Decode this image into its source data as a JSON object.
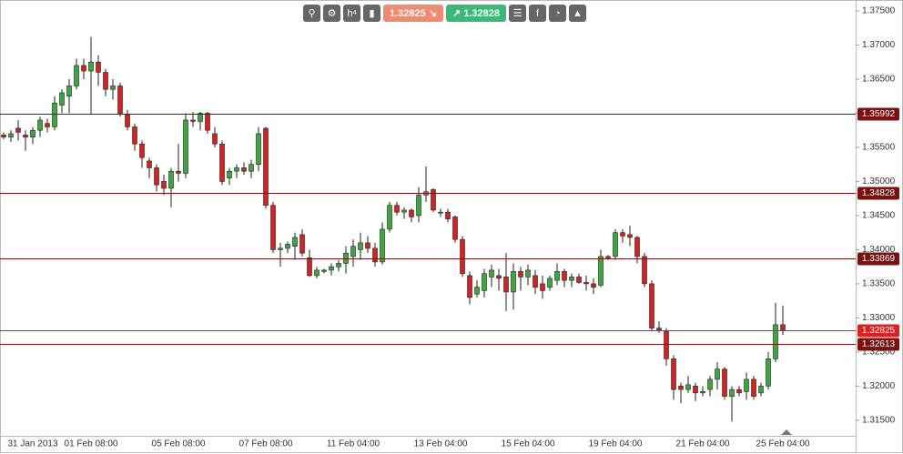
{
  "toolbar": {
    "timeframe": [
      "h",
      "4"
    ],
    "bid": "1.32825",
    "ask": "1.32828"
  },
  "chart_data": {
    "type": "candlestick",
    "categories": [
      null,
      null,
      null,
      null,
      "31 Jan 2013",
      null,
      null,
      null,
      null,
      null,
      null,
      null,
      "01 Feb 08:00",
      null,
      null,
      null,
      null,
      null,
      null,
      null,
      null,
      null,
      null,
      null,
      "05 Feb 08:00",
      null,
      null,
      null,
      null,
      null,
      null,
      null,
      null,
      null,
      null,
      null,
      "07 Feb 08:00",
      null,
      null,
      null,
      null,
      null,
      null,
      null,
      null,
      null,
      null,
      null,
      "11 Feb 04:00",
      null,
      null,
      null,
      null,
      null,
      null,
      null,
      null,
      null,
      null,
      null,
      "13 Feb 04:00",
      null,
      null,
      null,
      null,
      null,
      null,
      null,
      null,
      null,
      null,
      null,
      "15 Feb 04:00",
      null,
      null,
      null,
      null,
      null,
      null,
      null,
      null,
      null,
      null,
      null,
      "19 Feb 04:00",
      null,
      null,
      null,
      null,
      null,
      null,
      null,
      null,
      null,
      null,
      null,
      "21 Feb 04:00",
      null,
      null,
      null,
      null,
      null,
      null,
      null,
      null,
      null,
      null,
      "25 Feb 04:00"
    ],
    "open": [
      1.3568,
      1.3565,
      1.3578,
      1.3568,
      1.3565,
      1.3575,
      1.3585,
      1.358,
      1.3612,
      1.3625,
      1.364,
      1.367,
      1.3662,
      1.3675,
      1.366,
      1.3635,
      1.364,
      1.3598,
      1.358,
      1.3555,
      1.353,
      1.352,
      1.35,
      1.349,
      1.3515,
      1.3512,
      1.359,
      1.3588,
      1.36,
      1.357,
      1.3555,
      1.3505,
      1.3515,
      1.352,
      1.3515,
      1.3525,
      1.3578,
      1.3465,
      1.34,
      1.3402,
      1.3405,
      1.3422,
      1.3388,
      1.3362,
      1.3368,
      1.337,
      1.3375,
      1.338,
      1.339,
      1.34,
      1.341,
      1.3402,
      1.3382,
      1.343,
      1.3465,
      1.3455,
      1.3458,
      1.345,
      1.348,
      1.3488,
      1.3455,
      1.3455,
      1.3448,
      1.3415,
      1.3362,
      1.3335,
      1.334,
      1.336,
      1.3362,
      1.336,
      1.3338,
      1.3368,
      1.336,
      1.3362,
      1.335,
      1.3345,
      1.3355,
      1.3368,
      1.3355,
      1.336,
      1.3352,
      1.335,
      1.3348,
      1.339,
      1.339,
      1.3425,
      1.3422,
      1.3418,
      1.339,
      1.335,
      1.3285,
      1.328,
      1.324,
      1.32,
      1.3195,
      1.32,
      1.319,
      1.3195,
      1.321,
      1.3225,
      1.3185,
      1.3195,
      1.3192,
      1.321,
      1.319,
      1.32,
      1.324,
      1.329
    ],
    "high": [
      1.3572,
      1.3575,
      1.359,
      1.3575,
      1.358,
      1.3595,
      1.3592,
      1.3625,
      1.3635,
      1.365,
      1.368,
      1.368,
      1.3712,
      1.3685,
      1.3665,
      1.365,
      1.3645,
      1.3605,
      1.3585,
      1.356,
      1.3535,
      1.3525,
      1.351,
      1.352,
      1.3555,
      1.36,
      1.3602,
      1.3602,
      1.3602,
      1.358,
      1.356,
      1.352,
      1.3525,
      1.3528,
      1.3532,
      1.358,
      1.358,
      1.347,
      1.341,
      1.3412,
      1.3425,
      1.343,
      1.34,
      1.3375,
      1.3372,
      1.338,
      1.3385,
      1.3405,
      1.3415,
      1.3425,
      1.342,
      1.341,
      1.344,
      1.347,
      1.347,
      1.3462,
      1.346,
      1.3492,
      1.3522,
      1.349,
      1.346,
      1.346,
      1.345,
      1.342,
      1.3368,
      1.3355,
      1.3372,
      1.3378,
      1.3372,
      1.3395,
      1.338,
      1.3375,
      1.3378,
      1.337,
      1.3362,
      1.3362,
      1.338,
      1.3372,
      1.3365,
      1.3365,
      1.3362,
      1.3358,
      1.34,
      1.3392,
      1.343,
      1.343,
      1.3435,
      1.342,
      1.3395,
      1.3355,
      1.3295,
      1.3285,
      1.3245,
      1.3205,
      1.3215,
      1.3205,
      1.32,
      1.3215,
      1.3235,
      1.3228,
      1.32,
      1.32,
      1.322,
      1.3215,
      1.3205,
      1.325,
      1.3322,
      1.3318
    ],
    "low": [
      1.3562,
      1.3558,
      1.356,
      1.3545,
      1.3555,
      1.3565,
      1.3572,
      1.3575,
      1.36,
      1.36,
      1.3635,
      1.365,
      1.3598,
      1.364,
      1.3625,
      1.362,
      1.3595,
      1.3575,
      1.3545,
      1.352,
      1.3505,
      1.3485,
      1.348,
      1.3462,
      1.35,
      1.3505,
      1.358,
      1.3575,
      1.357,
      1.355,
      1.3495,
      1.3495,
      1.3505,
      1.351,
      1.3505,
      1.3515,
      1.346,
      1.3395,
      1.3375,
      1.3395,
      1.3385,
      1.339,
      1.336,
      1.3358,
      1.3365,
      1.3362,
      1.3368,
      1.3365,
      1.3375,
      1.3385,
      1.3395,
      1.3375,
      1.3378,
      1.3425,
      1.345,
      1.3445,
      1.344,
      1.344,
      1.347,
      1.3455,
      1.3448,
      1.344,
      1.341,
      1.336,
      1.332,
      1.333,
      1.333,
      1.3345,
      1.334,
      1.331,
      1.3312,
      1.334,
      1.3348,
      1.3335,
      1.3328,
      1.334,
      1.3348,
      1.3345,
      1.3345,
      1.335,
      1.334,
      1.3335,
      1.3345,
      1.3385,
      1.3385,
      1.341,
      1.3405,
      1.338,
      1.3345,
      1.328,
      1.3278,
      1.323,
      1.318,
      1.3175,
      1.319,
      1.3178,
      1.3185,
      1.3185,
      1.3195,
      1.318,
      1.3148,
      1.3185,
      1.318,
      1.318,
      1.3185,
      1.3195,
      1.3235,
      1.3275
    ],
    "close": [
      1.3565,
      1.357,
      1.3572,
      1.3565,
      1.3575,
      1.359,
      1.358,
      1.3615,
      1.363,
      1.364,
      1.367,
      1.3662,
      1.3675,
      1.366,
      1.3635,
      1.364,
      1.36,
      1.358,
      1.3555,
      1.3535,
      1.352,
      1.3495,
      1.349,
      1.3515,
      1.3512,
      1.359,
      1.3588,
      1.36,
      1.3575,
      1.3555,
      1.35,
      1.3515,
      1.352,
      1.3515,
      1.3525,
      1.357,
      1.3465,
      1.34,
      1.3402,
      1.3408,
      1.3418,
      1.3395,
      1.3362,
      1.337,
      1.337,
      1.3375,
      1.338,
      1.3395,
      1.3405,
      1.341,
      1.3402,
      1.3382,
      1.343,
      1.3465,
      1.3455,
      1.3458,
      1.3448,
      1.348,
      1.3485,
      1.3458,
      1.3455,
      1.3445,
      1.3415,
      1.3365,
      1.333,
      1.3345,
      1.3365,
      1.337,
      1.3358,
      1.3338,
      1.3368,
      1.336,
      1.337,
      1.3345,
      1.334,
      1.3358,
      1.3368,
      1.3355,
      1.336,
      1.3352,
      1.335,
      1.3345,
      1.339,
      1.3388,
      1.3425,
      1.342,
      1.3418,
      1.339,
      1.335,
      1.3285,
      1.3282,
      1.324,
      1.3195,
      1.3195,
      1.3202,
      1.319,
      1.3192,
      1.321,
      1.3225,
      1.3185,
      1.3195,
      1.319,
      1.321,
      1.3185,
      1.32,
      1.324,
      1.329,
      1.32825
    ],
    "up_color": "#3da63d",
    "down_color": "#d42222",
    "levels": [
      {
        "value": 1.35992,
        "color": "#7a1010"
      },
      {
        "value": 1.34828,
        "color": "#7a1010"
      },
      {
        "value": 1.33869,
        "color": "#7a1010"
      },
      {
        "value": 1.32825,
        "color": "#e02020"
      },
      {
        "value": 1.32613,
        "color": "#7a1010"
      }
    ],
    "ylim": [
      1.31058,
      1.3766
    ],
    "yticks": [
      {
        "value": 1.315,
        "label": "1.31500"
      },
      {
        "value": 1.32,
        "label": "1.32000"
      },
      {
        "value": 1.325,
        "label": "1.32500"
      },
      {
        "value": 1.33,
        "label": "1.33000"
      },
      {
        "value": 1.335,
        "label": "1.33500"
      },
      {
        "value": 1.34,
        "label": "1.34000"
      },
      {
        "value": 1.345,
        "label": "1.34500"
      },
      {
        "value": 1.35,
        "label": "1.35000"
      },
      {
        "value": 1.355,
        "label": "1.35500"
      },
      {
        "value": 1.36,
        "label": "1.36000"
      },
      {
        "value": 1.365,
        "label": "1.36500"
      },
      {
        "value": 1.37,
        "label": "1.37000"
      },
      {
        "value": 1.375,
        "label": "1.37500"
      }
    ]
  }
}
